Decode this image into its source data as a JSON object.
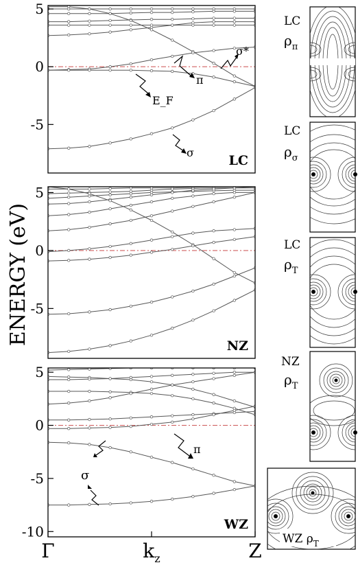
{
  "chart_data": [
    {
      "type": "line",
      "panel": "LC",
      "label": "LC",
      "ylabel": "ENERGY (eV)",
      "ylim": [
        -9.2,
        5.3
      ],
      "yticks": [
        5,
        0,
        -5
      ],
      "yticklabels": [
        "5",
        "0",
        "-5"
      ],
      "fermi_level": 0,
      "x": [
        0,
        0.1,
        0.2,
        0.3,
        0.4,
        0.5,
        0.6,
        0.7,
        0.8,
        0.9,
        1.0
      ],
      "series": [
        {
          "values": [
            5.0,
            5.0,
            5.0,
            5.0,
            5.0,
            5.0,
            5.0,
            5.0,
            5.0,
            5.0,
            5.0
          ]
        },
        {
          "values": [
            4.6,
            4.6,
            4.6,
            4.6,
            4.65,
            4.7,
            4.7,
            4.75,
            4.8,
            4.8,
            4.8
          ]
        },
        {
          "values": [
            3.9,
            3.9,
            3.95,
            4.0,
            4.05,
            4.1,
            4.1,
            4.15,
            4.2,
            4.2,
            4.2
          ]
        },
        {
          "values": [
            3.6,
            3.6,
            3.6,
            3.6,
            3.6,
            3.6,
            3.6,
            3.6,
            3.6,
            3.6,
            3.6
          ]
        },
        {
          "values": [
            2.7,
            2.75,
            2.85,
            3.0,
            3.2,
            3.4,
            3.6,
            3.8,
            3.9,
            3.9,
            3.9
          ]
        },
        {
          "values": [
            5.2,
            5.2,
            5.0,
            4.6,
            4.0,
            3.2,
            2.3,
            1.3,
            0.3,
            -0.8,
            -1.7
          ]
        },
        {
          "values": [
            -0.3,
            -0.25,
            -0.2,
            0.0,
            0.25,
            0.6,
            0.9,
            1.2,
            1.4,
            1.6,
            1.7
          ]
        },
        {
          "values": [
            -0.3,
            -0.3,
            -0.3,
            -0.3,
            -0.3,
            -0.35,
            -0.4,
            -0.6,
            -0.9,
            -1.3,
            -1.7
          ]
        },
        {
          "values": [
            -7.1,
            -7.05,
            -6.9,
            -6.6,
            -6.25,
            -5.8,
            -5.3,
            -4.6,
            -3.8,
            -2.8,
            -1.8
          ]
        }
      ],
      "annotations": [
        "σ*",
        "π",
        "E_F",
        "σ"
      ]
    },
    {
      "type": "line",
      "panel": "NZ",
      "label": "NZ",
      "ylim": [
        -9.3,
        5.5
      ],
      "yticks": [
        5,
        0,
        -5
      ],
      "yticklabels": [
        "5",
        "0",
        "-5"
      ],
      "fermi_level": 0,
      "x": [
        0,
        0.1,
        0.2,
        0.3,
        0.4,
        0.5,
        0.6,
        0.7,
        0.8,
        0.9,
        1.0
      ],
      "series": [
        {
          "values": [
            5.3,
            5.3,
            5.3,
            5.35,
            5.4,
            5.4,
            5.4,
            5.45,
            5.5,
            5.5,
            5.5
          ]
        },
        {
          "values": [
            4.9,
            4.95,
            5.0,
            5.05,
            5.1,
            5.2,
            5.3,
            5.35,
            5.4,
            5.4,
            5.4
          ]
        },
        {
          "values": [
            4.5,
            4.6,
            4.7,
            4.8,
            4.9,
            5.0,
            5.05,
            5.1,
            5.15,
            5.2,
            5.2
          ]
        },
        {
          "values": [
            4.0,
            4.05,
            4.2,
            4.4,
            4.6,
            4.8,
            5.0,
            5.2,
            5.3,
            5.4,
            5.5
          ]
        },
        {
          "values": [
            3.0,
            3.1,
            3.3,
            3.6,
            3.9,
            4.2,
            4.5,
            4.7,
            4.9,
            5.0,
            5.0
          ]
        },
        {
          "values": [
            1.7,
            1.8,
            2.0,
            2.3,
            2.6,
            3.0,
            3.4,
            3.8,
            4.2,
            4.6,
            5.0
          ]
        },
        {
          "values": [
            5.5,
            5.3,
            4.9,
            4.3,
            3.5,
            2.6,
            1.6,
            0.5,
            -0.7,
            -1.9,
            -2.8
          ]
        },
        {
          "values": [
            -0.1,
            0.0,
            0.15,
            0.35,
            0.6,
            0.9,
            1.2,
            1.5,
            1.7,
            1.8,
            1.9
          ]
        },
        {
          "values": [
            -0.9,
            -0.85,
            -0.75,
            -0.6,
            -0.4,
            -0.15,
            0.1,
            0.4,
            0.7,
            0.95,
            1.2
          ]
        },
        {
          "values": [
            -5.5,
            -5.45,
            -5.3,
            -5.1,
            -4.8,
            -4.45,
            -4.0,
            -3.5,
            -2.9,
            -2.2,
            -1.5
          ]
        },
        {
          "values": [
            -8.8,
            -8.7,
            -8.5,
            -8.2,
            -7.8,
            -7.3,
            -6.7,
            -6.0,
            -5.2,
            -4.3,
            -3.4
          ]
        }
      ]
    },
    {
      "type": "line",
      "panel": "WZ",
      "label": "WZ",
      "ylim": [
        -10.5,
        5.4
      ],
      "yticks": [
        5,
        0,
        -5,
        -10
      ],
      "yticklabels": [
        "5",
        "0",
        "-5",
        "-10"
      ],
      "fermi_level": 0,
      "xticklabels": [
        "Γ",
        "k_z",
        "Z"
      ],
      "x": [
        0,
        0.1,
        0.2,
        0.3,
        0.4,
        0.5,
        0.6,
        0.7,
        0.8,
        0.9,
        1.0
      ],
      "series": [
        {
          "values": [
            5.2,
            5.25,
            5.3,
            5.35,
            5.4,
            5.4,
            5.4,
            5.4,
            5.4,
            5.4,
            5.4
          ]
        },
        {
          "values": [
            4.6,
            4.55,
            4.5,
            4.4,
            4.3,
            4.1,
            3.8,
            3.4,
            2.9,
            2.3,
            1.7
          ]
        },
        {
          "values": [
            4.3,
            4.3,
            4.35,
            4.4,
            4.5,
            4.6,
            4.7,
            4.8,
            4.9,
            5.0,
            5.0
          ]
        },
        {
          "values": [
            3.2,
            3.2,
            3.2,
            3.15,
            3.1,
            3.0,
            2.8,
            2.5,
            2.1,
            1.6,
            1.0
          ]
        },
        {
          "values": [
            2.0,
            2.1,
            2.3,
            2.6,
            3.0,
            3.4,
            3.8,
            4.1,
            4.4,
            4.7,
            5.0
          ]
        },
        {
          "values": [
            0.5,
            0.5,
            0.55,
            0.6,
            0.7,
            0.8,
            0.9,
            1.0,
            1.1,
            1.2,
            1.3
          ]
        },
        {
          "values": [
            -0.3,
            -0.3,
            -0.25,
            -0.2,
            -0.1,
            0.1,
            0.3,
            0.6,
            1.0,
            1.4,
            1.8
          ]
        },
        {
          "values": [
            -1.6,
            -1.65,
            -1.8,
            -2.1,
            -2.5,
            -3.0,
            -3.5,
            -4.1,
            -4.7,
            -5.3,
            -5.7
          ]
        },
        {
          "values": [
            -7.5,
            -7.5,
            -7.45,
            -7.4,
            -7.3,
            -7.15,
            -6.95,
            -6.7,
            -6.4,
            -6.05,
            -5.7
          ]
        }
      ],
      "annotations": [
        "π",
        "σ"
      ]
    }
  ],
  "side_panels": [
    {
      "top": "LC",
      "bottom": "ρ",
      "sub": "π"
    },
    {
      "top": "LC",
      "bottom": "ρ",
      "sub": "σ"
    },
    {
      "top": "LC",
      "bottom": "ρ",
      "sub": "T"
    },
    {
      "top": "NZ",
      "bottom": "ρ",
      "sub": "T"
    },
    {
      "top": "WZ  ρ",
      "sub": "T"
    }
  ],
  "colors": {
    "bands": "#555555",
    "fermi": "#d06060",
    "axis": "#000000"
  }
}
